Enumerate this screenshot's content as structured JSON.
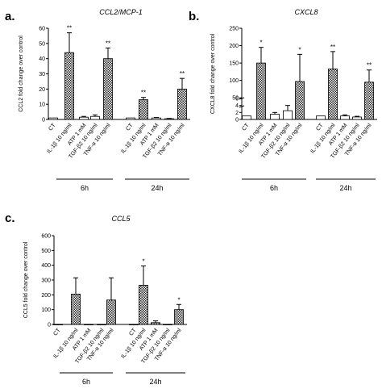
{
  "chart_data": [
    {
      "panel": "a.",
      "type": "bar",
      "title": "CCL2/MCP-1",
      "ylabel": "CCL2 fold change over control",
      "ylim": [
        0,
        60
      ],
      "yticks": [
        0,
        10,
        20,
        30,
        40,
        50,
        60
      ],
      "groups": [
        {
          "name": "6h",
          "categories": [
            "CT",
            "IL-1β 10 ng/ml",
            "ATP 1 mM",
            "TGF-β2 10 ng/ml",
            "TNF-α 10 ng/ml"
          ],
          "values": [
            1,
            44,
            1.5,
            2,
            40
          ],
          "errors": [
            0,
            13,
            0.5,
            1,
            7
          ],
          "significance": [
            "",
            "**",
            "",
            "",
            "**"
          ]
        },
        {
          "name": "24h",
          "categories": [
            "CT",
            "IL-1β 10 ng/ml",
            "ATP 1 mM",
            "TGF-β2 10 ng/ml",
            "TNF-α 10 ng/ml"
          ],
          "values": [
            1,
            13,
            1,
            0.5,
            20
          ],
          "errors": [
            0,
            1.5,
            0.3,
            0.2,
            7
          ],
          "significance": [
            "",
            "**",
            "",
            "",
            "**"
          ]
        }
      ]
    },
    {
      "panel": "b.",
      "type": "bar",
      "title": "CXCL8",
      "ylabel": "CXCL8 fold change over control",
      "axis_break": true,
      "ylim_lower": [
        0,
        6
      ],
      "yticks_lower": [
        0,
        2,
        4,
        6
      ],
      "ylim_upper": [
        25,
        250
      ],
      "yticks_upper": [
        50,
        100,
        150,
        200,
        250
      ],
      "groups": [
        {
          "name": "6h",
          "categories": [
            "CT",
            "IL-1β 10 ng/ml",
            "ATP 1 mM",
            "TGF-β2 10 ng/ml",
            "TNF-α 10 ng/ml"
          ],
          "values": [
            1,
            150,
            1.5,
            2.5,
            97
          ],
          "errors": [
            0,
            45,
            0.5,
            1.5,
            78
          ],
          "significance": [
            "",
            "*",
            "",
            "",
            "*"
          ]
        },
        {
          "name": "24h",
          "categories": [
            "CT",
            "IL-1β 10 ng/ml",
            "ATP 1 mM",
            "TGF-β2 10 ng/ml",
            "TNF-α 10 ng/ml"
          ],
          "values": [
            1,
            133,
            1,
            0.7,
            95
          ],
          "errors": [
            0,
            50,
            0.3,
            0.2,
            35
          ],
          "significance": [
            "",
            "**",
            "",
            "",
            "**"
          ]
        }
      ]
    },
    {
      "panel": "c.",
      "type": "bar",
      "title": "CCL5",
      "ylabel": "CCL5 fold change over control",
      "ylim": [
        0,
        600
      ],
      "yticks": [
        0,
        100,
        200,
        300,
        400,
        500,
        600
      ],
      "groups": [
        {
          "name": "6h",
          "categories": [
            "CT",
            "IL-1β 10 ng/ml",
            "ATP 1 mM",
            "TGF-β2 10 ng/ml",
            "TNF-α 10 ng/ml"
          ],
          "values": [
            1,
            205,
            1,
            1,
            165
          ],
          "errors": [
            0,
            110,
            0,
            0,
            150
          ],
          "significance": [
            "",
            "",
            "",
            "",
            ""
          ]
        },
        {
          "name": "24h",
          "categories": [
            "CT",
            "IL-1β 10 ng/ml",
            "ATP 1 mM",
            "TGF-β2 10 ng/ml",
            "TNF-α 10 ng/ml"
          ],
          "values": [
            1,
            265,
            12,
            1,
            100
          ],
          "errors": [
            0,
            130,
            12,
            0,
            35
          ],
          "significance": [
            "",
            "*",
            "",
            "",
            "*"
          ]
        }
      ]
    }
  ]
}
